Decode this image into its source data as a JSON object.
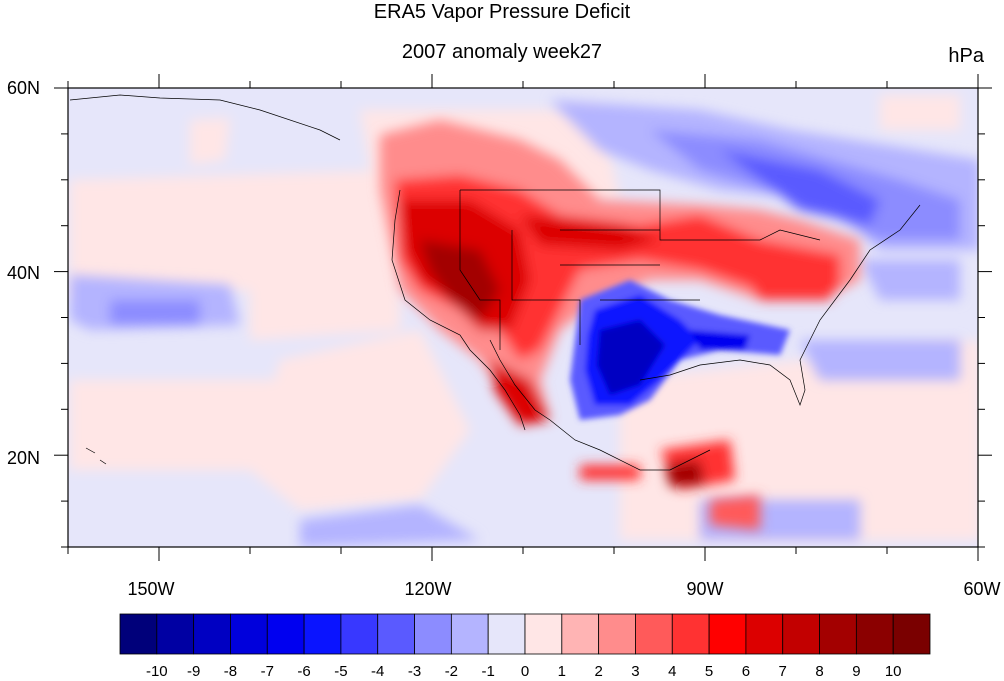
{
  "title": "ERA5 Vapor Pressure Deficit",
  "subtitle": "2007 anomaly week27",
  "units": "hPa",
  "map": {
    "lon_range": [
      -160,
      -60
    ],
    "lat_range": [
      10,
      60
    ],
    "x_tick_labels": [
      "150W",
      "120W",
      "90W",
      "60W"
    ],
    "x_tick_values": [
      -150,
      -120,
      -90,
      -60
    ],
    "y_tick_labels": [
      "20N",
      "40N",
      "60N"
    ],
    "y_tick_values": [
      20,
      40,
      60
    ]
  },
  "colorbar": {
    "labels": [
      "-10",
      "-9",
      "-8",
      "-7",
      "-6",
      "-5",
      "-4",
      "-3",
      "-2",
      "-1",
      "0",
      "1",
      "2",
      "3",
      "4",
      "5",
      "6",
      "7",
      "8",
      "9",
      "10"
    ],
    "colors": [
      "#00007a",
      "#0000a3",
      "#0000c2",
      "#0000dc",
      "#0000f0",
      "#0a14ff",
      "#3838ff",
      "#5a5aff",
      "#8c8cff",
      "#b4b4ff",
      "#e6e6fa",
      "#ffe6e6",
      "#ffb4b4",
      "#ff8c8c",
      "#ff5a5a",
      "#ff3232",
      "#ff0000",
      "#dc0000",
      "#c20000",
      "#a30000",
      "#8b0000",
      "#7a0000"
    ]
  },
  "colors": {
    "background_field": "#e6e6fa",
    "frame": "#000000"
  }
}
